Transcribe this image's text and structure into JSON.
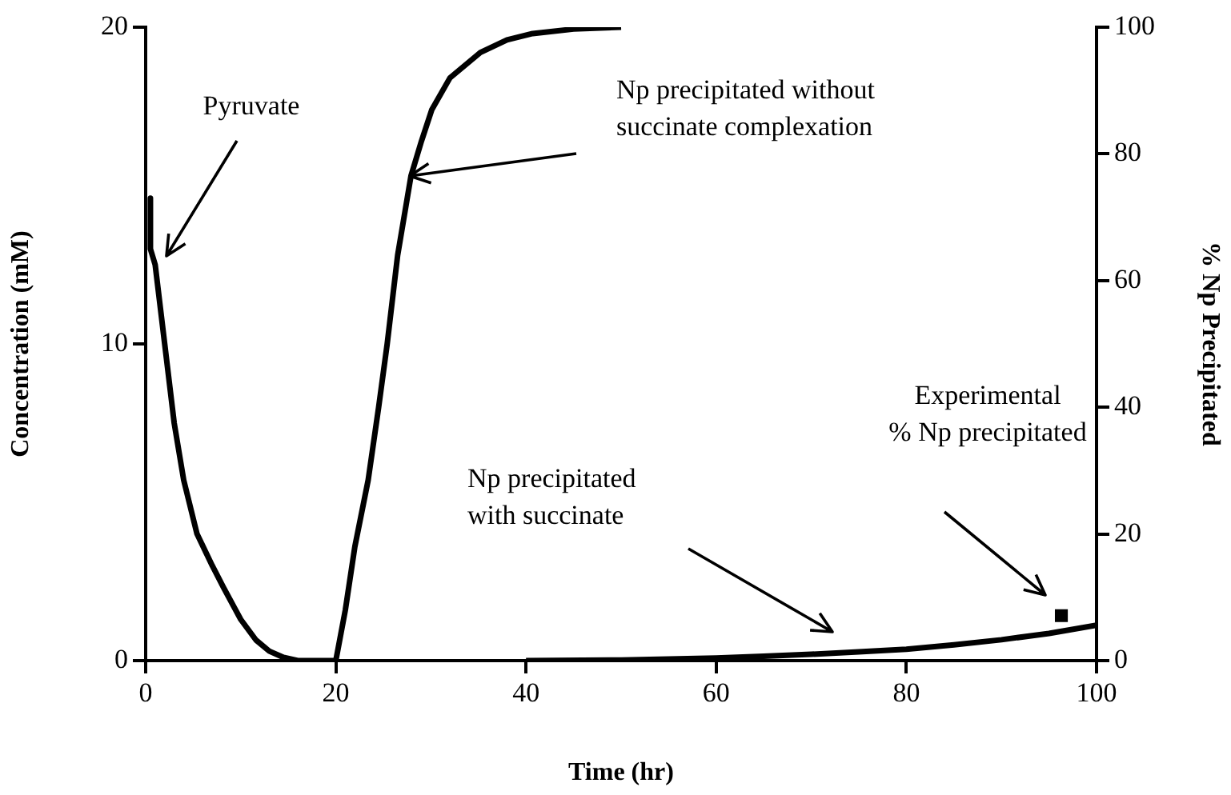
{
  "chart_data": {
    "type": "line",
    "xlabel": "Time (hr)",
    "ylabel": "Concentration (mM)",
    "y2label": "% Np Precipitated",
    "xlim": [
      0,
      100
    ],
    "xticks": [
      0,
      20,
      40,
      60,
      80,
      100
    ],
    "ylim": [
      0,
      20
    ],
    "yticks": [
      0,
      10,
      20
    ],
    "y2lim": [
      0,
      100
    ],
    "y2ticks": [
      0,
      20,
      40,
      60,
      80,
      100
    ],
    "grid": false,
    "legend": false,
    "marker": "none",
    "line_style": "solid",
    "series": [
      {
        "color": "#000000",
        "x": [
          0.5,
          0.5,
          1,
          2,
          3,
          4,
          5.4,
          7,
          8.2,
          10,
          11.6,
          13,
          14.5,
          16,
          18,
          20
        ],
        "values": [
          14.6,
          13,
          12.5,
          10,
          7.5,
          5.7,
          4,
          3,
          2.3,
          1.3,
          0.65,
          0.3,
          0.1,
          0,
          0,
          0
        ]
      },
      {
        "color": "#000000",
        "axis": "y2",
        "x": [
          20,
          21,
          22,
          23.4,
          24.5,
          25.4,
          26.5,
          27.9,
          29,
          30.1,
          32,
          35.2,
          38,
          40.7,
          45,
          50
        ],
        "values": [
          0,
          8,
          18,
          28.5,
          40,
          50,
          64,
          76.5,
          82,
          87,
          92,
          96,
          98,
          99,
          99.7,
          100
        ]
      },
      {
        "color": "#000000",
        "axis": "y2",
        "x": [
          40,
          50,
          60,
          65,
          70,
          75,
          80,
          85,
          90,
          95,
          100
        ],
        "values": [
          0,
          0.1,
          0.4,
          0.7,
          1,
          1.4,
          1.8,
          2.5,
          3.3,
          4.3,
          5.6
        ]
      },
      {
        "type": "scatter",
        "marker": "square",
        "color": "#000000",
        "axis": "y2",
        "x": [
          96.3
        ],
        "values": [
          7.1
        ]
      }
    ],
    "annotations": [
      "Pyruvate",
      "Np precipitated without\nsuccinate complexation",
      "Np precipitated\nwith succinate",
      "Experimental\n% Np precipitated"
    ]
  }
}
